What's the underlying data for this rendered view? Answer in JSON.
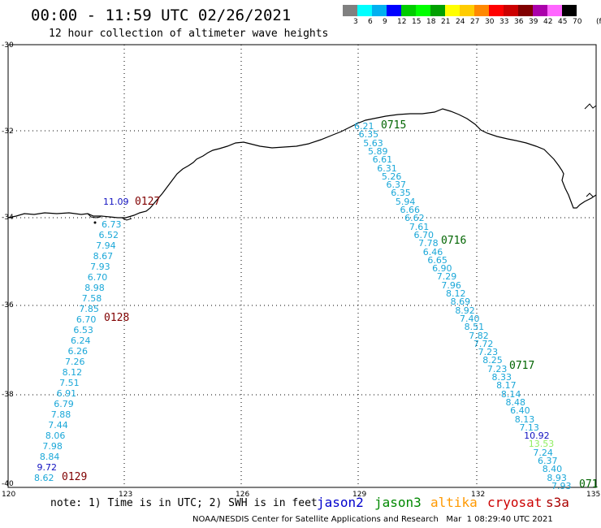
{
  "title": "00:00 - 11:59 UTC 02/26/2021",
  "subtitle": "12 hour collection of altimeter wave heights",
  "colorbar": {
    "colors": [
      "#808080",
      "#00ffff",
      "#00b0f0",
      "#0000ff",
      "#00cc00",
      "#00ff00",
      "#00a000",
      "#ffff00",
      "#ffcc00",
      "#ff8800",
      "#ff0000",
      "#cc0000",
      "#800000",
      "#aa00aa",
      "#ff66ff",
      "#000000"
    ],
    "labels": [
      "3",
      "6",
      "9",
      "12",
      "15",
      "18",
      "21",
      "24",
      "27",
      "30",
      "33",
      "36",
      "39",
      "42",
      "45",
      "70"
    ],
    "unit": "(ft)"
  },
  "axes": {
    "lat_labels": [
      "-30",
      "-32",
      "-34",
      "-36",
      "-38",
      "-40"
    ],
    "lon_labels": [
      "120",
      "123",
      "126",
      "129",
      "132",
      "135"
    ]
  },
  "track_colors": {
    "cyan": "#1aa7d8",
    "blue": "#1010c0",
    "green": "#90ee60",
    "darkred": "#800000",
    "darkgreen": "#006400"
  },
  "tracks": {
    "west": {
      "points": [
        {
          "t": "11.09",
          "c": "blue"
        },
        {
          "t": "6.73",
          "c": "cyan"
        },
        {
          "t": "6.52",
          "c": "cyan"
        },
        {
          "t": "7.94",
          "c": "cyan"
        },
        {
          "t": "8.67",
          "c": "cyan"
        },
        {
          "t": "7.93",
          "c": "cyan"
        },
        {
          "t": "6.70",
          "c": "cyan"
        },
        {
          "t": "8.98",
          "c": "cyan"
        },
        {
          "t": "7.58",
          "c": "cyan"
        },
        {
          "t": "7.85",
          "c": "cyan"
        },
        {
          "t": "6.70",
          "c": "cyan"
        },
        {
          "t": "6.53",
          "c": "cyan"
        },
        {
          "t": "6.24",
          "c": "cyan"
        },
        {
          "t": "6.26",
          "c": "cyan"
        },
        {
          "t": "7.26",
          "c": "cyan"
        },
        {
          "t": "8.12",
          "c": "cyan"
        },
        {
          "t": "7.51",
          "c": "cyan"
        },
        {
          "t": "6.91",
          "c": "cyan"
        },
        {
          "t": "6.79",
          "c": "cyan"
        },
        {
          "t": "7.88",
          "c": "cyan"
        },
        {
          "t": "7.44",
          "c": "cyan"
        },
        {
          "t": "8.06",
          "c": "cyan"
        },
        {
          "t": "7.98",
          "c": "cyan"
        },
        {
          "t": "8.84",
          "c": "cyan"
        },
        {
          "t": "9.72",
          "c": "blue"
        },
        {
          "t": "8.62",
          "c": "cyan"
        }
      ],
      "times": [
        "0127",
        "0128",
        "0129"
      ]
    },
    "east": {
      "points": [
        {
          "t": "6.21",
          "c": "cyan"
        },
        {
          "t": "6.35",
          "c": "cyan"
        },
        {
          "t": "5.63",
          "c": "cyan"
        },
        {
          "t": "5.89",
          "c": "cyan"
        },
        {
          "t": "6.61",
          "c": "cyan"
        },
        {
          "t": "6.31",
          "c": "cyan"
        },
        {
          "t": "5.26",
          "c": "cyan"
        },
        {
          "t": "6.37",
          "c": "cyan"
        },
        {
          "t": "6.35",
          "c": "cyan"
        },
        {
          "t": "5.94",
          "c": "cyan"
        },
        {
          "t": "6.66",
          "c": "cyan"
        },
        {
          "t": "6.62",
          "c": "cyan"
        },
        {
          "t": "7.61",
          "c": "cyan"
        },
        {
          "t": "6.70",
          "c": "cyan"
        },
        {
          "t": "7.78",
          "c": "cyan"
        },
        {
          "t": "6.46",
          "c": "cyan"
        },
        {
          "t": "6.65",
          "c": "cyan"
        },
        {
          "t": "6.90",
          "c": "cyan"
        },
        {
          "t": "7.29",
          "c": "cyan"
        },
        {
          "t": "7.96",
          "c": "cyan"
        },
        {
          "t": "8.12",
          "c": "cyan"
        },
        {
          "t": "8.69",
          "c": "cyan"
        },
        {
          "t": "8.92",
          "c": "cyan"
        },
        {
          "t": "7.40",
          "c": "cyan"
        },
        {
          "t": "8.51",
          "c": "cyan"
        },
        {
          "t": "7.82",
          "c": "cyan"
        },
        {
          "t": "7.72",
          "c": "cyan"
        },
        {
          "t": "7.23",
          "c": "cyan"
        },
        {
          "t": "8.25",
          "c": "cyan"
        },
        {
          "t": "7.23",
          "c": "cyan"
        },
        {
          "t": "8.33",
          "c": "cyan"
        },
        {
          "t": "8.17",
          "c": "cyan"
        },
        {
          "t": "8.14",
          "c": "cyan"
        },
        {
          "t": "8.48",
          "c": "cyan"
        },
        {
          "t": "6.40",
          "c": "cyan"
        },
        {
          "t": "8.13",
          "c": "cyan"
        },
        {
          "t": "7.13",
          "c": "cyan"
        },
        {
          "t": "10.92",
          "c": "blue"
        },
        {
          "t": "13.53",
          "c": "green"
        },
        {
          "t": "7.24",
          "c": "cyan"
        },
        {
          "t": "6.37",
          "c": "cyan"
        },
        {
          "t": "8.40",
          "c": "cyan"
        },
        {
          "t": "8.93",
          "c": "cyan"
        },
        {
          "t": "7.93",
          "c": "cyan"
        }
      ],
      "times": [
        "0715",
        "0716",
        "0717",
        "071"
      ]
    }
  },
  "note": "note: 1) Time is in UTC; 2) SWH is in feet",
  "legend": [
    {
      "label": "jason2",
      "color": "#0000cc"
    },
    {
      "label": "jason3",
      "color": "#008800"
    },
    {
      "label": "altika",
      "color": "#ff9900"
    },
    {
      "label": "cryosat",
      "color": "#cc0000"
    },
    {
      "label": "s3a",
      "color": "#aa0000"
    }
  ],
  "credit": "NOAA/NESDIS Center for Satellite Applications and Research   Mar  1 08:29:40 UTC 2021"
}
